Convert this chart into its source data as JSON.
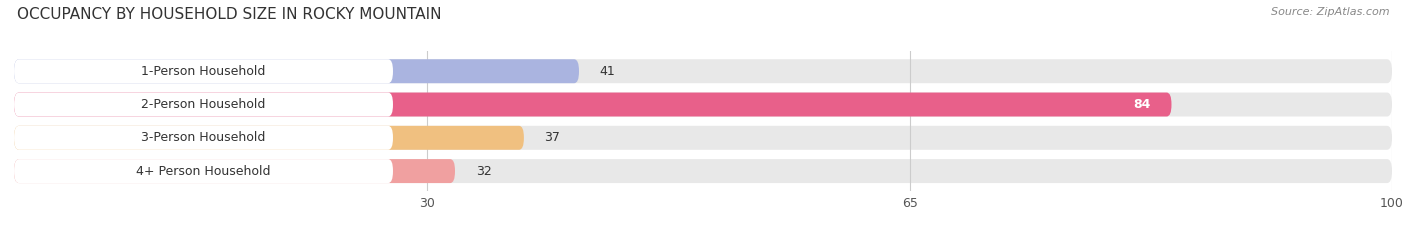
{
  "title": "OCCUPANCY BY HOUSEHOLD SIZE IN ROCKY MOUNTAIN",
  "source": "Source: ZipAtlas.com",
  "categories": [
    "1-Person Household",
    "2-Person Household",
    "3-Person Household",
    "4+ Person Household"
  ],
  "values": [
    41,
    84,
    37,
    32
  ],
  "bar_colors": [
    "#aab4e0",
    "#e8608a",
    "#f0c080",
    "#f0a0a0"
  ],
  "label_colors": [
    "#333333",
    "#ffffff",
    "#333333",
    "#333333"
  ],
  "xlim": [
    0,
    100
  ],
  "xticks": [
    30,
    65,
    100
  ],
  "bar_height": 0.62,
  "background_color": "#ffffff",
  "row_bg_color": "#e8e8e8",
  "title_fontsize": 11,
  "source_fontsize": 8,
  "label_fontsize": 9,
  "value_fontsize": 9,
  "tick_fontsize": 9
}
